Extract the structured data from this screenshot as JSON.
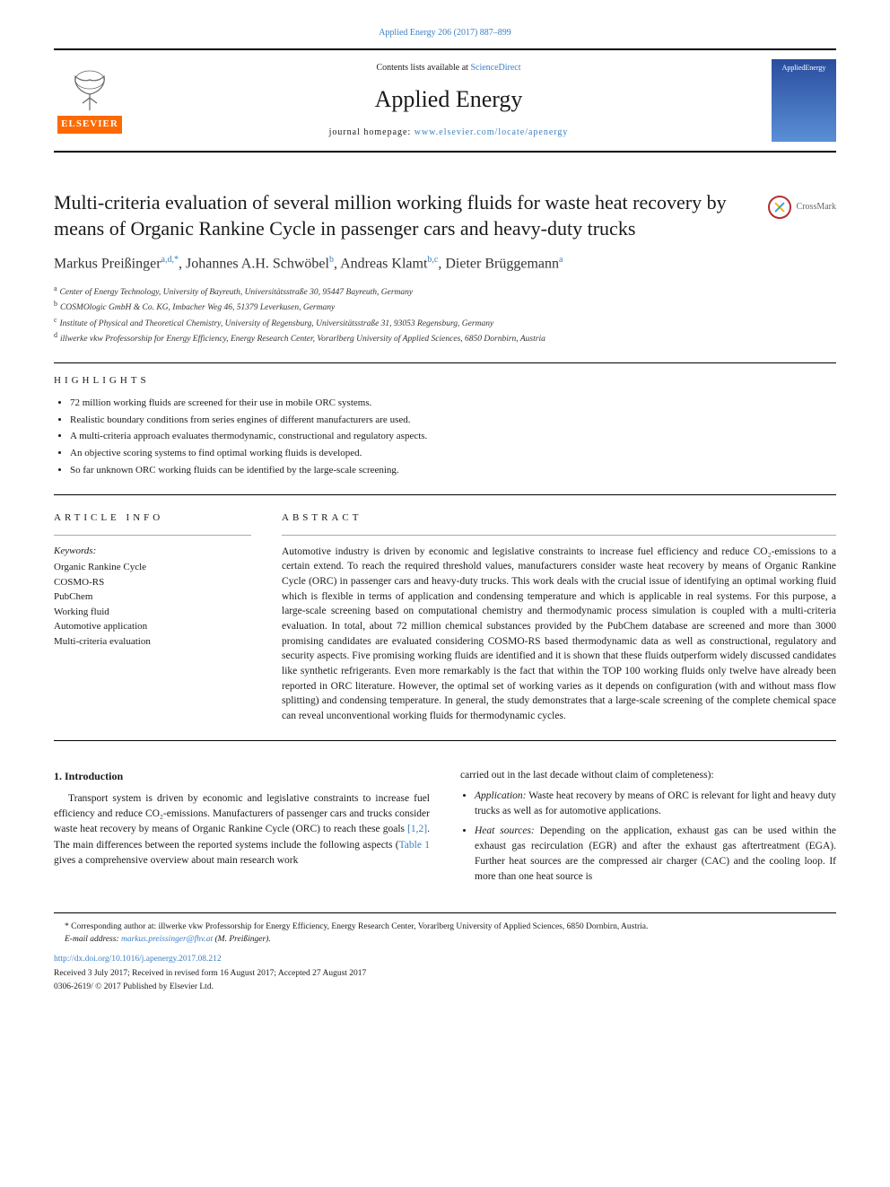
{
  "journal_ref": "Applied Energy 206 (2017) 887–899",
  "contents_line_prefix": "Contents lists available at ",
  "contents_link": "ScienceDirect",
  "journal_name": "Applied Energy",
  "homepage_prefix": "journal homepage: ",
  "homepage_link": "www.elsevier.com/locate/apenergy",
  "cover_label": "AppliedEnergy",
  "elsevier_label": "ELSEVIER",
  "article_title": "Multi-criteria evaluation of several million working fluids for waste heat recovery by means of Organic Rankine Cycle in passenger cars and heavy-duty trucks",
  "crossmark_label": "CrossMark",
  "authors_html": "Markus Preißinger",
  "authors": [
    {
      "name": "Markus Preißinger",
      "sup": "a,d,*"
    },
    {
      "name": "Johannes A.H. Schwöbel",
      "sup": "b"
    },
    {
      "name": "Andreas Klamt",
      "sup": "b,c"
    },
    {
      "name": "Dieter Brüggemann",
      "sup": "a"
    }
  ],
  "affiliations": [
    {
      "sup": "a",
      "text": "Center of Energy Technology, University of Bayreuth, Universitätsstraße 30, 95447 Bayreuth, Germany"
    },
    {
      "sup": "b",
      "text": "COSMOlogic GmbH & Co. KG, Imbacher Weg 46, 51379 Leverkusen, Germany"
    },
    {
      "sup": "c",
      "text": "Institute of Physical and Theoretical Chemistry, University of Regensburg, Universitätsstraße 31, 93053 Regensburg, Germany"
    },
    {
      "sup": "d",
      "text": "illwerke vkw Professorship for Energy Efficiency, Energy Research Center, Vorarlberg University of Applied Sciences, 6850 Dornbirn, Austria"
    }
  ],
  "highlights_label": "HIGHLIGHTS",
  "highlights": [
    "72 million working fluids are screened for their use in mobile ORC systems.",
    "Realistic boundary conditions from series engines of different manufacturers are used.",
    "A multi-criteria approach evaluates thermodynamic, constructional and regulatory aspects.",
    "An objective scoring systems to find optimal working fluids is developed.",
    "So far unknown ORC working fluids can be identified by the large-scale screening."
  ],
  "article_info_label": "ARTICLE INFO",
  "abstract_label": "ABSTRACT",
  "keywords_label": "Keywords:",
  "keywords": [
    "Organic Rankine Cycle",
    "COSMO-RS",
    "PubChem",
    "Working fluid",
    "Automotive application",
    "Multi-criteria evaluation"
  ],
  "abstract_text": "Automotive industry is driven by economic and legislative constraints to increase fuel efficiency and reduce CO₂-emissions to a certain extend. To reach the required threshold values, manufacturers consider waste heat recovery by means of Organic Rankine Cycle (ORC) in passenger cars and heavy-duty trucks. This work deals with the crucial issue of identifying an optimal working fluid which is flexible in terms of application and condensing temperature and which is applicable in real systems. For this purpose, a large-scale screening based on computational chemistry and thermodynamic process simulation is coupled with a multi-criteria evaluation. In total, about 72 million chemical substances provided by the PubChem database are screened and more than 3000 promising candidates are evaluated considering COSMO-RS based thermodynamic data as well as constructional, regulatory and security aspects. Five promising working fluids are identified and it is shown that these fluids outperform widely discussed candidates like synthetic refrigerants. Even more remarkably is the fact that within the TOP 100 working fluids only twelve have already been reported in ORC literature. However, the optimal set of working varies as it depends on configuration (with and without mass flow splitting) and condensing temperature. In general, the study demonstrates that a large-scale screening of the complete chemical space can reveal unconventional working fluids for thermodynamic cycles.",
  "intro_heading": "1. Introduction",
  "intro_p1_pre": "Transport system is driven by economic and legislative constraints to increase fuel efficiency and reduce CO₂-emissions. Manufacturers of passenger cars and trucks consider waste heat recovery by means of Organic Rankine Cycle (ORC) to reach these goals ",
  "intro_ref1": "[1,2]",
  "intro_p1_mid": ". The main differences between the reported systems include the following aspects (",
  "intro_table_ref": "Table 1",
  "intro_p1_post": " gives a comprehensive overview about main research work",
  "col2_line1": "carried out in the last decade without claim of completeness):",
  "col2_bullets": [
    {
      "label": "Application:",
      "text": " Waste heat recovery by means of ORC is relevant for light and heavy duty trucks as well as for automotive applications."
    },
    {
      "label": "Heat sources:",
      "text": " Depending on the application, exhaust gas can be used within the exhaust gas recirculation (EGR) and after the exhaust gas aftertreatment (EGA). Further heat sources are the compressed air charger (CAC) and the cooling loop. If more than one heat source is"
    }
  ],
  "corr_marker": "*",
  "corr_text": " Corresponding author at: illwerke vkw Professorship for Energy Efficiency, Energy Research Center, Vorarlberg University of Applied Sciences, 6850 Dornbirn, Austria.",
  "email_label": "E-mail address: ",
  "email_link": "markus.preissinger@fhv.at",
  "email_suffix": " (M. Preißinger).",
  "doi": "http://dx.doi.org/10.1016/j.apenergy.2017.08.212",
  "received": "Received 3 July 2017; Received in revised form 16 August 2017; Accepted 27 August 2017",
  "copyright": "0306-2619/ © 2017 Published by Elsevier Ltd.",
  "colors": {
    "link": "#3b7fc4",
    "elsevier_orange": "#ff6a00",
    "text": "#1a1a1a"
  }
}
